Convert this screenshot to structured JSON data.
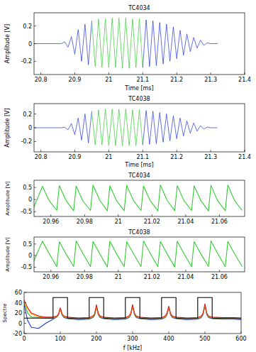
{
  "chart_data": [
    {
      "type": "line",
      "title": "TC4034",
      "x_label": "Time [ms]",
      "y_label": "Amplitude [V]",
      "xlim": [
        20.78,
        21.4
      ],
      "xticks": [
        20.8,
        20.9,
        21,
        21.1,
        21.2,
        21.3,
        21.4
      ],
      "ylim": [
        -0.35,
        0.35
      ],
      "yticks": [
        -0.2,
        0,
        0.2
      ],
      "grid": false,
      "series": [
        {
          "color": "#2034d8",
          "line_style": "solid",
          "x": [
            20.78,
            20.86,
            20.87,
            20.88,
            20.89,
            20.9,
            20.91,
            20.92,
            20.93,
            20.94,
            20.95
          ],
          "values": [
            0,
            0,
            0.02,
            -0.04,
            0.08,
            -0.12,
            0.16,
            -0.2,
            0.22,
            -0.24,
            0.26
          ]
        },
        {
          "color": "#33cc33",
          "line_style": "solid",
          "x": [
            20.95,
            20.96,
            20.97,
            20.98,
            20.99,
            21,
            21.01,
            21.02,
            21.03,
            21.04,
            21.05,
            21.06,
            21.07,
            21.08,
            21.09,
            21.1
          ],
          "values": [
            0.26,
            -0.26,
            0.28,
            -0.27,
            0.28,
            -0.27,
            0.29,
            -0.27,
            0.29,
            -0.28,
            0.29,
            -0.28,
            0.28,
            -0.27,
            0.28,
            -0.27
          ]
        },
        {
          "color": "#2034d8",
          "line_style": "solid",
          "x": [
            21.1,
            21.11,
            21.12,
            21.13,
            21.14,
            21.15,
            21.16,
            21.17,
            21.18,
            21.19,
            21.2,
            21.21,
            21.22,
            21.23,
            21.24,
            21.25,
            21.26,
            21.27,
            21.28,
            21.29,
            21.3,
            21.32
          ],
          "values": [
            -0.27,
            0.27,
            -0.26,
            0.26,
            -0.25,
            0.24,
            -0.23,
            0.22,
            -0.2,
            0.19,
            -0.17,
            0.15,
            -0.13,
            0.11,
            -0.09,
            0.07,
            -0.05,
            0.04,
            -0.02,
            0.01,
            0,
            0
          ]
        }
      ]
    },
    {
      "type": "line",
      "title": "TC4038",
      "x_label": "Time [ms]",
      "y_label": "Amplitude [V]",
      "xlim": [
        20.78,
        21.4
      ],
      "xticks": [
        20.8,
        20.9,
        21,
        21.1,
        21.2,
        21.3,
        21.4
      ],
      "ylim": [
        -0.35,
        0.35
      ],
      "yticks": [
        -0.2,
        0,
        0.2
      ],
      "grid": false,
      "series": [
        {
          "color": "#2034d8",
          "line_style": "solid",
          "x": [
            20.78,
            20.86,
            20.87,
            20.88,
            20.89,
            20.9,
            20.91,
            20.92,
            20.93,
            20.94,
            20.95
          ],
          "values": [
            0,
            0,
            0.01,
            -0.03,
            0.06,
            -0.1,
            0.14,
            -0.18,
            0.2,
            -0.22,
            0.24
          ]
        },
        {
          "color": "#33cc33",
          "line_style": "solid",
          "x": [
            20.95,
            20.96,
            20.97,
            20.98,
            20.99,
            21,
            21.01,
            21.02,
            21.03,
            21.04,
            21.05,
            21.06,
            21.07,
            21.08,
            21.09,
            21.1
          ],
          "values": [
            0.24,
            -0.25,
            0.26,
            -0.25,
            0.27,
            -0.26,
            0.27,
            -0.26,
            0.27,
            -0.26,
            0.27,
            -0.26,
            0.26,
            -0.26,
            0.26,
            -0.25
          ]
        },
        {
          "color": "#2034d8",
          "line_style": "solid",
          "x": [
            21.1,
            21.11,
            21.12,
            21.13,
            21.14,
            21.15,
            21.16,
            21.17,
            21.18,
            21.19,
            21.2,
            21.21,
            21.22,
            21.23,
            21.24,
            21.25,
            21.26,
            21.27,
            21.28,
            21.29,
            21.3,
            21.32
          ],
          "values": [
            -0.25,
            0.25,
            -0.24,
            0.24,
            -0.23,
            0.22,
            -0.21,
            0.2,
            -0.19,
            0.17,
            -0.16,
            0.14,
            -0.12,
            0.1,
            -0.08,
            0.07,
            -0.05,
            0.03,
            -0.02,
            0.01,
            0,
            0
          ]
        }
      ]
    },
    {
      "type": "line",
      "title": "TC4034",
      "y_label": "Amplitude [V]",
      "xlim": [
        20.95,
        21.075
      ],
      "xticks": [
        20.96,
        20.98,
        21,
        21.02,
        21.04,
        21.06
      ],
      "ylim": [
        -0.7,
        0.8
      ],
      "yticks": [
        -0.5,
        0,
        0.5
      ],
      "grid": false,
      "x": [
        20.95,
        20.955,
        20.959,
        20.9635,
        20.965,
        20.969,
        20.9735,
        20.975,
        20.979,
        20.9835,
        20.985,
        20.989,
        20.9935,
        20.995,
        20.999,
        21.0035,
        21.005,
        21.009,
        21.0135,
        21.015,
        21.019,
        21.0235,
        21.025,
        21.029,
        21.0335,
        21.035,
        21.039,
        21.0435,
        21.045,
        21.049,
        21.0535,
        21.055,
        21.059,
        21.0635,
        21.065,
        21.069,
        21.0735
      ],
      "series": [
        {
          "color": "#33cc33",
          "line_style": "solid",
          "values": [
            -0.3,
            0.55,
            -0.05,
            -0.45,
            0.58,
            -0.04,
            -0.46,
            0.56,
            -0.06,
            -0.45,
            0.6,
            -0.03,
            -0.47,
            0.57,
            -0.05,
            -0.46,
            0.59,
            -0.04,
            -0.45,
            0.56,
            -0.05,
            -0.47,
            0.6,
            -0.03,
            -0.46,
            0.58,
            -0.05,
            -0.45,
            0.57,
            -0.04,
            -0.47,
            0.59,
            -0.05,
            -0.46,
            0.6,
            -0.04,
            -0.45
          ]
        }
      ]
    },
    {
      "type": "line",
      "title": "TC4038",
      "y_label": "Amplitude [V]",
      "xlim": [
        20.95,
        21.075
      ],
      "xticks": [
        20.96,
        20.98,
        21,
        21.02,
        21.04,
        21.06
      ],
      "ylim": [
        -0.7,
        0.8
      ],
      "yticks": [
        -0.5,
        0,
        0.5
      ],
      "grid": false,
      "x": [
        20.95,
        20.955,
        20.959,
        20.9635,
        20.965,
        20.969,
        20.9735,
        20.975,
        20.979,
        20.9835,
        20.985,
        20.989,
        20.9935,
        20.995,
        20.999,
        21.0035,
        21.005,
        21.009,
        21.0135,
        21.015,
        21.019,
        21.0235,
        21.025,
        21.029,
        21.0335,
        21.035,
        21.039,
        21.0435,
        21.045,
        21.049,
        21.0535,
        21.055,
        21.059,
        21.0635,
        21.065,
        21.069,
        21.0735
      ],
      "series": [
        {
          "color": "#33cc33",
          "line_style": "solid",
          "values": [
            -0.2,
            0.62,
            0.08,
            -0.48,
            0.6,
            0.07,
            -0.47,
            0.63,
            0.09,
            -0.48,
            0.61,
            0.08,
            -0.49,
            0.62,
            0.07,
            -0.48,
            0.6,
            0.08,
            -0.47,
            0.63,
            0.09,
            -0.48,
            0.61,
            0.07,
            -0.49,
            0.62,
            0.08,
            -0.48,
            0.6,
            0.07,
            -0.47,
            0.63,
            0.09,
            -0.48,
            0.61,
            0.08,
            -0.47
          ]
        }
      ]
    },
    {
      "type": "line",
      "x_label": "f [kHz]",
      "y_label": "Spectre",
      "xlim": [
        0,
        600
      ],
      "xticks": [
        0,
        100,
        200,
        300,
        400,
        500,
        600
      ],
      "ylim": [
        -20,
        60
      ],
      "yticks": [
        -20,
        0,
        20,
        40,
        60
      ],
      "grid": false,
      "x": [
        0,
        10,
        20,
        40,
        60,
        80,
        90,
        95,
        100,
        105,
        110,
        120,
        150,
        180,
        190,
        195,
        200,
        205,
        210,
        220,
        250,
        280,
        290,
        295,
        300,
        305,
        310,
        320,
        350,
        380,
        390,
        395,
        400,
        405,
        410,
        420,
        450,
        480,
        490,
        495,
        500,
        505,
        510,
        520,
        550,
        580,
        600
      ],
      "series": [
        {
          "color": "#1f3fd0",
          "line_style": "solid",
          "values": [
            35,
            5,
            -8,
            -10,
            0,
            8,
            12,
            16,
            29,
            16,
            11,
            9,
            7,
            8,
            11,
            15,
            33,
            17,
            11,
            9,
            7,
            8,
            11,
            16,
            34,
            17,
            11,
            9,
            7,
            8,
            11,
            16,
            31,
            16,
            11,
            9,
            7,
            8,
            11,
            17,
            35,
            17,
            11,
            9,
            8,
            8,
            7
          ]
        },
        {
          "color": "#33aa33",
          "line_style": "solid",
          "values": [
            38,
            20,
            12,
            11,
            10,
            10,
            12,
            16,
            28,
            16,
            12,
            10,
            8,
            9,
            12,
            16,
            34,
            18,
            12,
            10,
            8,
            9,
            12,
            17,
            35,
            18,
            12,
            10,
            8,
            9,
            12,
            17,
            32,
            17,
            12,
            10,
            8,
            9,
            12,
            18,
            36,
            18,
            12,
            10,
            9,
            9,
            8
          ]
        },
        {
          "color": "#ff9900",
          "line_style": "solid",
          "values": [
            40,
            28,
            18,
            13,
            11,
            11,
            13,
            17,
            27,
            17,
            13,
            11,
            9,
            10,
            13,
            17,
            33,
            19,
            13,
            11,
            9,
            10,
            13,
            18,
            34,
            19,
            13,
            11,
            9,
            10,
            13,
            18,
            31,
            18,
            13,
            11,
            9,
            10,
            13,
            19,
            35,
            19,
            13,
            11,
            10,
            10,
            9
          ]
        },
        {
          "color": "#e02020",
          "line_style": "solid",
          "values": [
            45,
            30,
            20,
            14,
            12,
            12,
            14,
            18,
            30,
            18,
            14,
            12,
            10,
            11,
            14,
            18,
            36,
            20,
            14,
            12,
            10,
            11,
            14,
            20,
            36,
            20,
            14,
            12,
            10,
            11,
            14,
            20,
            33,
            19,
            14,
            12,
            10,
            11,
            14,
            20,
            38,
            20,
            14,
            12,
            11,
            11,
            10
          ]
        },
        {
          "color": "#000000",
          "line_style": "solid",
          "x": [
            0,
            80,
            80,
            120,
            120,
            180,
            180,
            220,
            220,
            280,
            280,
            320,
            320,
            380,
            380,
            420,
            420,
            480,
            480,
            520,
            520,
            600
          ],
          "values": [
            10,
            10,
            50,
            50,
            10,
            10,
            50,
            50,
            10,
            10,
            50,
            50,
            10,
            10,
            50,
            50,
            10,
            10,
            50,
            50,
            10,
            10
          ]
        }
      ]
    }
  ]
}
